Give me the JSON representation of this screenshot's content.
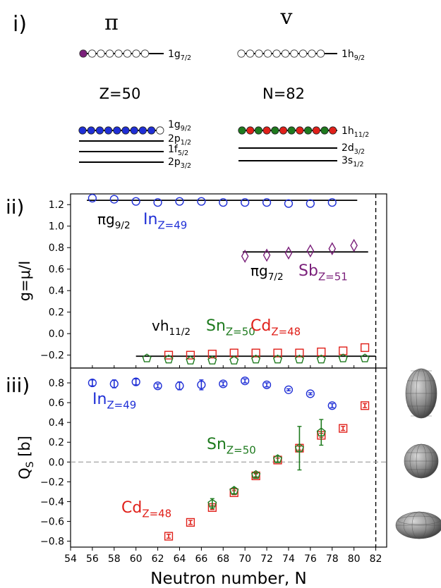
{
  "panel_labels": {
    "i": "i)",
    "ii": "ii)",
    "iii": "iii)"
  },
  "shell_diagram": {
    "proton": {
      "symbol": "π",
      "magic_label": "Z=50",
      "upper_level": {
        "label": "1g",
        "sub": "7/2",
        "filled": 1,
        "capacity": 8,
        "fill_color": "#7a1f7a"
      },
      "filled_level": {
        "label": "1g",
        "sub": "9/2",
        "blue": 9,
        "empty": 1,
        "fill_color": "#1f2fd6"
      },
      "lower_levels": [
        {
          "label": "2p",
          "sub": "1/2"
        },
        {
          "label": "1f",
          "sub": "5/2"
        },
        {
          "label": "2p",
          "sub": "3/2"
        }
      ]
    },
    "neutron": {
      "symbol": "v",
      "magic_label": "N=82",
      "upper_level": {
        "label": "1h",
        "sub": "9/2",
        "filled": 0,
        "capacity": 10
      },
      "filled_level": {
        "label": "1h",
        "sub": "11/2",
        "count": 12,
        "colors": [
          "#1e7a1e",
          "#e0201a"
        ]
      },
      "lower_levels": [
        {
          "label": "2d",
          "sub": "3/2"
        },
        {
          "label": "3s",
          "sub": "1/2"
        }
      ]
    }
  },
  "chart_data": [
    {
      "type": "scatter",
      "title": "",
      "ylabel": "g=μ/I",
      "ylim": [
        -0.32,
        1.3
      ],
      "xlim": [
        54,
        83
      ],
      "yticks": [
        "-0.2",
        "0.0",
        "0.2",
        "0.4",
        "0.6",
        "0.8",
        "1.0",
        "1.2"
      ],
      "reference_lines": [
        {
          "label": "πg9/2",
          "y": 1.24,
          "x": [
            55.5,
            80.3
          ]
        },
        {
          "label": "πg7/2",
          "y": 0.76,
          "x": [
            69.8,
            81.3
          ]
        },
        {
          "label": "vh11/2",
          "y": -0.21,
          "x": [
            60.0,
            82.0
          ]
        }
      ],
      "annotations": [
        {
          "main": "πg",
          "sub": "9/2",
          "color": "#000000"
        },
        {
          "main": "In",
          "sub": "Z=49",
          "color": "#1f2fd6"
        },
        {
          "main": "πg",
          "sub": "7/2",
          "color": "#000000"
        },
        {
          "main": "Sb",
          "sub": "Z=51",
          "color": "#7a1f7a"
        },
        {
          "main": "vh",
          "sub": "11/2",
          "color": "#000000"
        },
        {
          "main": "Sn",
          "sub": "Z=50",
          "color": "#1e7a1e"
        },
        {
          "main": "Cd",
          "sub": "Z=48",
          "color": "#e0201a"
        }
      ],
      "series": [
        {
          "name": "In",
          "color": "#1f2fd6",
          "marker": "circle",
          "x": [
            56,
            58,
            60,
            62,
            64,
            66,
            68,
            70,
            72,
            74,
            76,
            78
          ],
          "y": [
            1.26,
            1.25,
            1.23,
            1.22,
            1.23,
            1.23,
            1.22,
            1.22,
            1.22,
            1.21,
            1.21,
            1.22
          ]
        },
        {
          "name": "Sb",
          "color": "#7a1f7a",
          "marker": "diamond",
          "x": [
            70,
            72,
            74,
            76,
            78,
            80
          ],
          "y": [
            0.72,
            0.73,
            0.75,
            0.77,
            0.79,
            0.82
          ]
        },
        {
          "name": "Cd",
          "color": "#e0201a",
          "marker": "square",
          "x": [
            63,
            65,
            67,
            69,
            71,
            73,
            75,
            77,
            79,
            81
          ],
          "y": [
            -0.2,
            -0.2,
            -0.19,
            -0.18,
            -0.18,
            -0.18,
            -0.18,
            -0.17,
            -0.16,
            -0.13
          ]
        },
        {
          "name": "Sn",
          "color": "#1e7a1e",
          "marker": "pentagon",
          "x": [
            61,
            63,
            65,
            67,
            69,
            71,
            73,
            75,
            77,
            79,
            81
          ],
          "y": [
            -0.23,
            -0.24,
            -0.25,
            -0.25,
            -0.25,
            -0.24,
            -0.24,
            -0.24,
            -0.24,
            -0.23,
            -0.23
          ]
        }
      ]
    },
    {
      "type": "scatter",
      "title": "",
      "xlabel": "Neutron number, N",
      "ylabel": "Q_S [b]",
      "ylim": [
        -0.86,
        0.95
      ],
      "xlim": [
        54,
        83
      ],
      "xticks": [
        "54",
        "56",
        "58",
        "60",
        "62",
        "64",
        "66",
        "68",
        "70",
        "72",
        "74",
        "76",
        "78",
        "80",
        "82"
      ],
      "yticks": [
        "-0.8",
        "-0.6",
        "-0.4",
        "-0.2",
        "0.0",
        "0.2",
        "0.4",
        "0.6",
        "0.8"
      ],
      "magic_line_x": 82,
      "zero_line_y": 0.0,
      "annotations": [
        {
          "main": "In",
          "sub": "Z=49",
          "color": "#1f2fd6"
        },
        {
          "main": "Sn",
          "sub": "Z=50",
          "color": "#1e7a1e"
        },
        {
          "main": "Cd",
          "sub": "Z=48",
          "color": "#e0201a"
        }
      ],
      "shape_icons": [
        "prolate-shape",
        "spherical-shape",
        "oblate-shape"
      ],
      "series": [
        {
          "name": "In",
          "color": "#1f2fd6",
          "marker": "circle",
          "x": [
            56,
            58,
            60,
            62,
            64,
            66,
            68,
            70,
            72,
            74,
            76,
            78
          ],
          "y": [
            0.8,
            0.79,
            0.81,
            0.77,
            0.77,
            0.78,
            0.79,
            0.82,
            0.78,
            0.73,
            0.69,
            0.57
          ],
          "err": [
            0.03,
            0.04,
            0.03,
            0.02,
            0.04,
            0.05,
            0.02,
            0.02,
            0.02,
            0.01,
            0.01,
            0.02
          ]
        },
        {
          "name": "Cd",
          "color": "#e0201a",
          "marker": "square",
          "x": [
            63,
            65,
            67,
            69,
            71,
            73,
            75,
            77,
            79,
            81
          ],
          "y": [
            -0.75,
            -0.61,
            -0.46,
            -0.31,
            -0.14,
            0.02,
            0.14,
            0.27,
            0.34,
            0.57
          ],
          "err": [
            0.02,
            0.02,
            0.02,
            0.02,
            0.02,
            0.02,
            0.02,
            0.02,
            0.02,
            0.02
          ]
        },
        {
          "name": "Sn",
          "color": "#1e7a1e",
          "marker": "pentagon",
          "x": [
            67,
            69,
            71,
            73,
            75,
            77
          ],
          "y": [
            -0.42,
            -0.29,
            -0.13,
            0.03,
            0.14,
            0.3
          ],
          "err": [
            0.05,
            0.03,
            0.02,
            0.03,
            0.22,
            0.13
          ]
        }
      ]
    }
  ]
}
